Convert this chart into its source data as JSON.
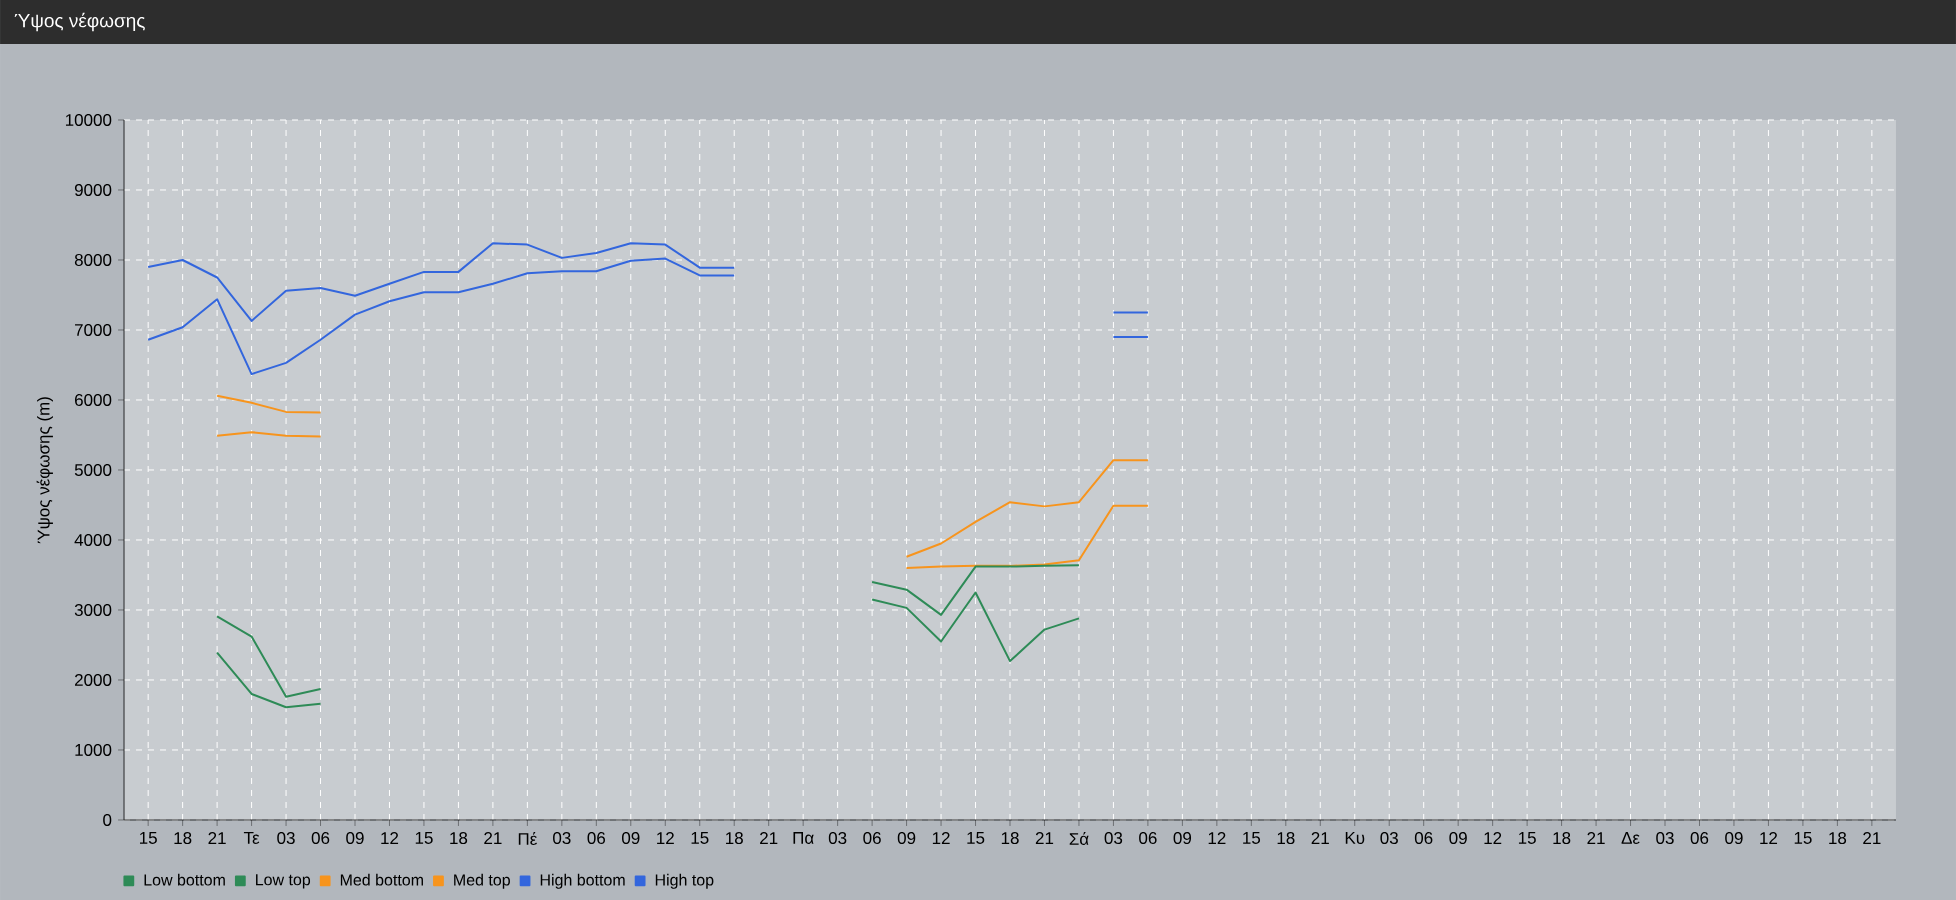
{
  "chart_data": {
    "type": "line",
    "title": "Ύψος νέφωσης",
    "ylabel": "Ύψος νέφωσης (m)",
    "categories": [
      "15",
      "18",
      "21",
      "Τε",
      "03",
      "06",
      "09",
      "12",
      "15",
      "18",
      "21",
      "Πέ",
      "03",
      "06",
      "09",
      "12",
      "15",
      "18",
      "21",
      "Πα",
      "03",
      "06",
      "09",
      "12",
      "15",
      "18",
      "21",
      "Σά",
      "03",
      "06",
      "09",
      "12",
      "15",
      "18",
      "21",
      "Κυ",
      "03",
      "06",
      "09",
      "12",
      "15",
      "18",
      "21",
      "Δε",
      "03",
      "06",
      "09",
      "12",
      "15",
      "18",
      "21"
    ],
    "series": [
      {
        "name": "Low bottom",
        "color": "#2e8b57",
        "values": [
          null,
          null,
          2390,
          1800,
          1610,
          1660,
          null,
          null,
          null,
          null,
          null,
          null,
          null,
          null,
          null,
          null,
          null,
          null,
          null,
          null,
          null,
          3150,
          3030,
          2550,
          3250,
          2270,
          2720,
          2880,
          null,
          null,
          null,
          null,
          null,
          null,
          null,
          null,
          null,
          null,
          null,
          null,
          null,
          null,
          null,
          null,
          null,
          null,
          null,
          null,
          null,
          null,
          null
        ]
      },
      {
        "name": "Low top",
        "color": "#2e8b57",
        "values": [
          null,
          null,
          2910,
          2620,
          1760,
          1870,
          null,
          null,
          null,
          null,
          null,
          null,
          null,
          null,
          null,
          null,
          null,
          null,
          null,
          null,
          null,
          3400,
          3290,
          2930,
          3620,
          3620,
          3630,
          3640,
          null,
          null,
          null,
          null,
          null,
          null,
          null,
          null,
          null,
          null,
          null,
          null,
          null,
          null,
          null,
          null,
          null,
          null,
          null,
          null,
          null,
          null,
          null
        ]
      },
      {
        "name": "Med bottom",
        "color": "#f7941d",
        "values": [
          null,
          null,
          5490,
          5540,
          5490,
          5480,
          null,
          null,
          null,
          null,
          null,
          null,
          null,
          null,
          null,
          null,
          null,
          null,
          null,
          null,
          null,
          null,
          3600,
          3620,
          3630,
          3630,
          3650,
          3710,
          4490,
          4490,
          null,
          null,
          null,
          null,
          null,
          null,
          null,
          null,
          null,
          null,
          null,
          null,
          null,
          null,
          null,
          null,
          null,
          null,
          null,
          null,
          null
        ]
      },
      {
        "name": "Med top",
        "color": "#f7941d",
        "values": [
          null,
          null,
          6060,
          5960,
          5830,
          5820,
          null,
          null,
          null,
          null,
          null,
          null,
          null,
          null,
          null,
          null,
          null,
          null,
          null,
          null,
          null,
          null,
          3760,
          3950,
          4260,
          4540,
          4480,
          4540,
          5140,
          5140,
          null,
          null,
          null,
          null,
          null,
          null,
          null,
          null,
          null,
          null,
          null,
          null,
          null,
          null,
          null,
          null,
          null,
          null,
          null,
          null,
          null
        ]
      },
      {
        "name": "High bottom",
        "color": "#3366dd",
        "values": [
          6860,
          7040,
          7440,
          6370,
          6530,
          6860,
          7220,
          7410,
          7540,
          7540,
          7660,
          7810,
          7840,
          7840,
          7990,
          8020,
          7780,
          7780,
          null,
          null,
          null,
          null,
          null,
          null,
          null,
          null,
          null,
          null,
          6900,
          6900,
          null,
          null,
          null,
          null,
          null,
          null,
          null,
          null,
          null,
          null,
          null,
          null,
          null,
          null,
          null,
          null,
          null,
          null,
          null,
          null,
          null
        ]
      },
      {
        "name": "High top",
        "color": "#3366dd",
        "values": [
          7900,
          8000,
          7750,
          7130,
          7560,
          7600,
          7490,
          7660,
          7830,
          7830,
          8240,
          8220,
          8030,
          8100,
          8240,
          8220,
          7890,
          7890,
          null,
          null,
          null,
          null,
          null,
          null,
          null,
          null,
          null,
          null,
          7250,
          7250,
          null,
          null,
          null,
          null,
          null,
          null,
          null,
          null,
          null,
          null,
          null,
          null,
          null,
          null,
          null,
          null,
          null,
          null,
          null,
          null,
          null
        ]
      }
    ],
    "ylim": [
      0,
      10000
    ],
    "yticks": [
      0,
      1000,
      2000,
      3000,
      4000,
      5000,
      6000,
      7000,
      8000,
      9000,
      10000
    ],
    "grid": true,
    "legend": "bottom left"
  }
}
